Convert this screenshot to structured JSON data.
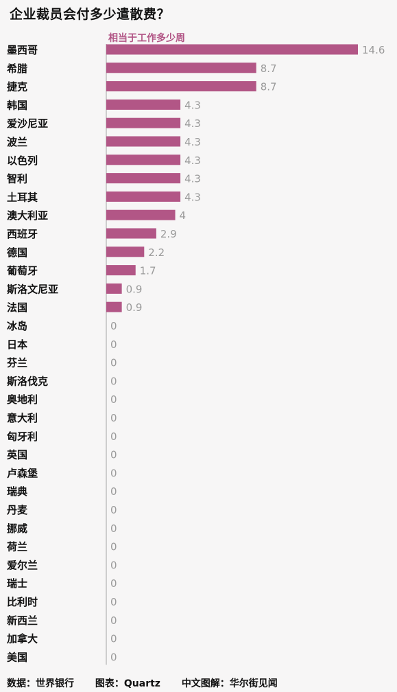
{
  "title": "企业裁员会付多少遣散费？",
  "footer": {
    "data_source": "数据：世界银行",
    "chart_source": "图表：Quartz",
    "translation": "中文图解：华尔街见闻"
  },
  "colors": {
    "bar": "#b25686",
    "subtitle": "#b25686",
    "value_label": "#9a9a9a",
    "axis": "#bfbfbf",
    "background": "#f7f6f6"
  },
  "chart_data": {
    "type": "bar",
    "orientation": "horizontal",
    "title": "企业裁员会付多少遣散费？",
    "subtitle": "相当于工作多少周",
    "categories": [
      "墨西哥",
      "希腊",
      "捷克",
      "韩国",
      "爱沙尼亚",
      "波兰",
      "以色列",
      "智利",
      "土耳其",
      "澳大利亚",
      "西班牙",
      "德国",
      "葡萄牙",
      "斯洛文尼亚",
      "法国",
      "冰岛",
      "日本",
      "芬兰",
      "斯洛伐克",
      "奥地利",
      "意大利",
      "匈牙利",
      "英国",
      "卢森堡",
      "瑞典",
      "丹麦",
      "挪威",
      "荷兰",
      "爱尔兰",
      "瑞士",
      "比利时",
      "新西兰",
      "加拿大",
      "美国"
    ],
    "values": [
      14.6,
      8.7,
      8.7,
      4.3,
      4.3,
      4.3,
      4.3,
      4.3,
      4.3,
      4,
      2.9,
      2.2,
      1.7,
      0.9,
      0.9,
      0,
      0,
      0,
      0,
      0,
      0,
      0,
      0,
      0,
      0,
      0,
      0,
      0,
      0,
      0,
      0,
      0,
      0,
      0
    ],
    "value_labels": [
      "14.6",
      "8.7",
      "8.7",
      "4.3",
      "4.3",
      "4.3",
      "4.3",
      "4.3",
      "4.3",
      "4",
      "2.9",
      "2.2",
      "1.7",
      "0.9",
      "0.9",
      "0",
      "0",
      "0",
      "0",
      "0",
      "0",
      "0",
      "0",
      "0",
      "0",
      "0",
      "0",
      "0",
      "0",
      "0",
      "0",
      "0",
      "0",
      "0"
    ],
    "xlim": [
      0,
      14.6
    ],
    "grid": false,
    "legend": "none"
  }
}
